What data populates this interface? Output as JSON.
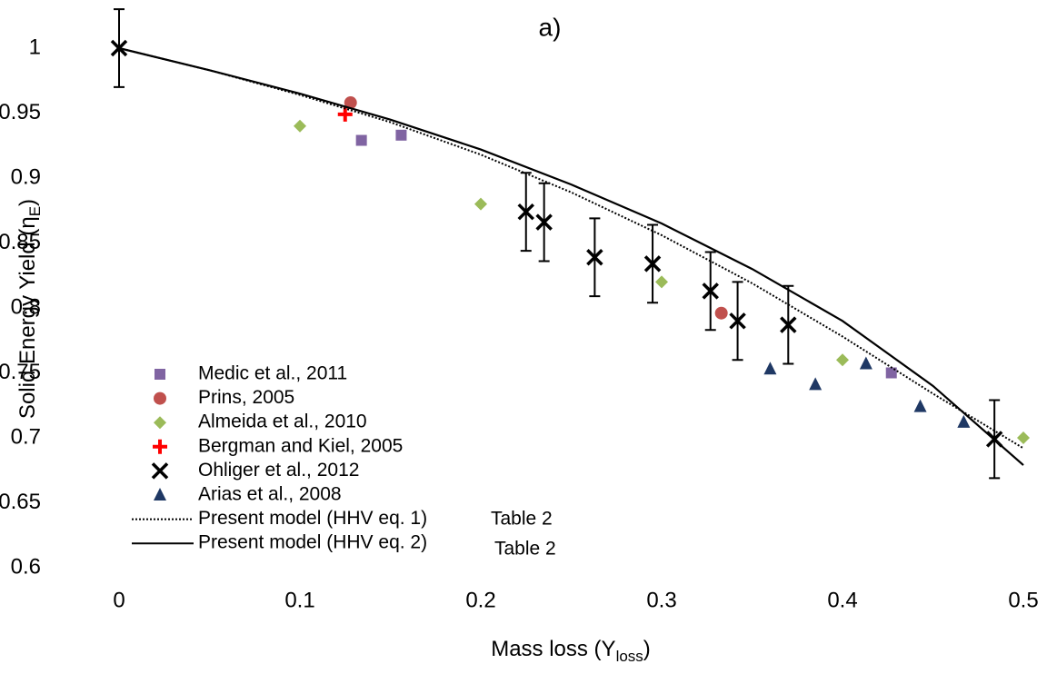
{
  "chart_data": {
    "type": "scatter",
    "title": "a)",
    "xlabel": {
      "main": "Mass loss (Y",
      "subscript": "loss",
      "end": ")"
    },
    "ylabel": {
      "main": "Solid Energy Yield (η",
      "subscript": "E",
      "end": ")"
    },
    "xlim": [
      0,
      0.5
    ],
    "xticks": [
      0,
      0.1,
      0.2,
      0.3,
      0.4,
      0.5
    ],
    "ylim": [
      0.6,
      1
    ],
    "yticks": [
      0.6,
      0.65,
      0.7,
      0.75,
      0.8,
      0.85,
      0.9,
      0.95,
      1
    ],
    "series": [
      {
        "name": "Medic et al., 2011",
        "color": "#8064a2",
        "marker": "square",
        "x": [
          0.134,
          0.156,
          0.427
        ],
        "values": [
          0.929,
          0.933,
          0.75
        ]
      },
      {
        "name": "Prins, 2005",
        "color": "#c0504d",
        "marker": "circle",
        "x": [
          0.128,
          0.333
        ],
        "values": [
          0.958,
          0.796
        ]
      },
      {
        "name": "Almeida et al., 2010",
        "color": "#9bbb59",
        "marker": "diamond",
        "x": [
          0.1,
          0.2,
          0.3,
          0.4,
          0.5
        ],
        "values": [
          0.94,
          0.88,
          0.82,
          0.76,
          0.7
        ]
      },
      {
        "name": "Bergman and Kiel, 2005",
        "color": "#ff0000",
        "marker": "plus",
        "x": [
          0.125
        ],
        "values": [
          0.949
        ]
      },
      {
        "name": "Ohliger et al., 2012",
        "color": "#000000",
        "marker": "cross",
        "x": [
          0,
          0.225,
          0.235,
          0.263,
          0.295,
          0.327,
          0.342,
          0.37,
          0.484
        ],
        "values": [
          1.0,
          0.874,
          0.866,
          0.839,
          0.834,
          0.813,
          0.79,
          0.787,
          0.699
        ],
        "errors": [
          0.03,
          0.03,
          0.03,
          0.03,
          0.03,
          0.03,
          0.03,
          0.03,
          0.03
        ]
      },
      {
        "name": "Arias et al., 2008",
        "color": "#1f3864",
        "marker": "triangle",
        "x": [
          0.36,
          0.385,
          0.413,
          0.443,
          0.467
        ],
        "values": [
          0.753,
          0.741,
          0.757,
          0.724,
          0.712
        ]
      },
      {
        "name": "Present model (HHV eq. 1)",
        "color": "#000000",
        "line": "dotted",
        "x": [
          0,
          0.05,
          0.1,
          0.15,
          0.2,
          0.25,
          0.3,
          0.35,
          0.4,
          0.45,
          0.5
        ],
        "values": [
          1,
          0.983,
          0.964,
          0.943,
          0.918,
          0.889,
          0.856,
          0.819,
          0.778,
          0.734,
          0.692
        ]
      },
      {
        "name": "Present model (HHV eq. 2)",
        "color": "#000000",
        "line": "solid",
        "x": [
          0,
          0.05,
          0.1,
          0.15,
          0.2,
          0.25,
          0.3,
          0.35,
          0.4,
          0.45,
          0.5
        ],
        "values": [
          1,
          0.983,
          0.965,
          0.945,
          0.922,
          0.895,
          0.865,
          0.83,
          0.79,
          0.74,
          0.679
        ]
      }
    ],
    "annotations": [
      "Table 2",
      "Table 2"
    ]
  }
}
